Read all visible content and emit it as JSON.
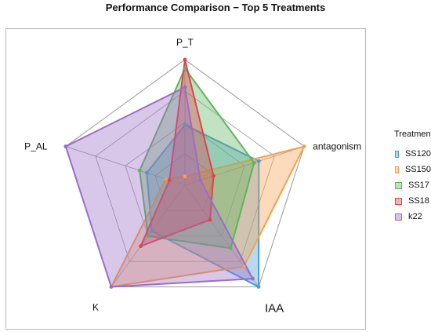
{
  "chart_data": {
    "type": "radar",
    "title": "Performance Comparison − Top 5 Treatments",
    "axes": [
      "P_T",
      "antagonism",
      "IAA",
      "K",
      "P_AL"
    ],
    "range": [
      0,
      1
    ],
    "grid_levels": 4,
    "legend_title": "Treatments",
    "legend_position": "right",
    "series": [
      {
        "name": "SS120",
        "color": "#4a9bd1",
        "values": [
          0.48,
          0.62,
          1.0,
          0.45,
          0.32
        ]
      },
      {
        "name": "SS150",
        "color": "#f5a04c",
        "values": [
          0.07,
          1.0,
          0.8,
          1.0,
          0.16
        ]
      },
      {
        "name": "SS17",
        "color": "#5db55d",
        "values": [
          0.93,
          0.58,
          0.62,
          0.5,
          0.38
        ]
      },
      {
        "name": "SS18",
        "color": "#e0434d",
        "values": [
          1.0,
          0.24,
          0.34,
          0.6,
          0.13
        ]
      },
      {
        "name": "k22",
        "color": "#9b6dc6",
        "values": [
          0.78,
          0.13,
          0.92,
          1.0,
          1.0
        ]
      }
    ]
  }
}
